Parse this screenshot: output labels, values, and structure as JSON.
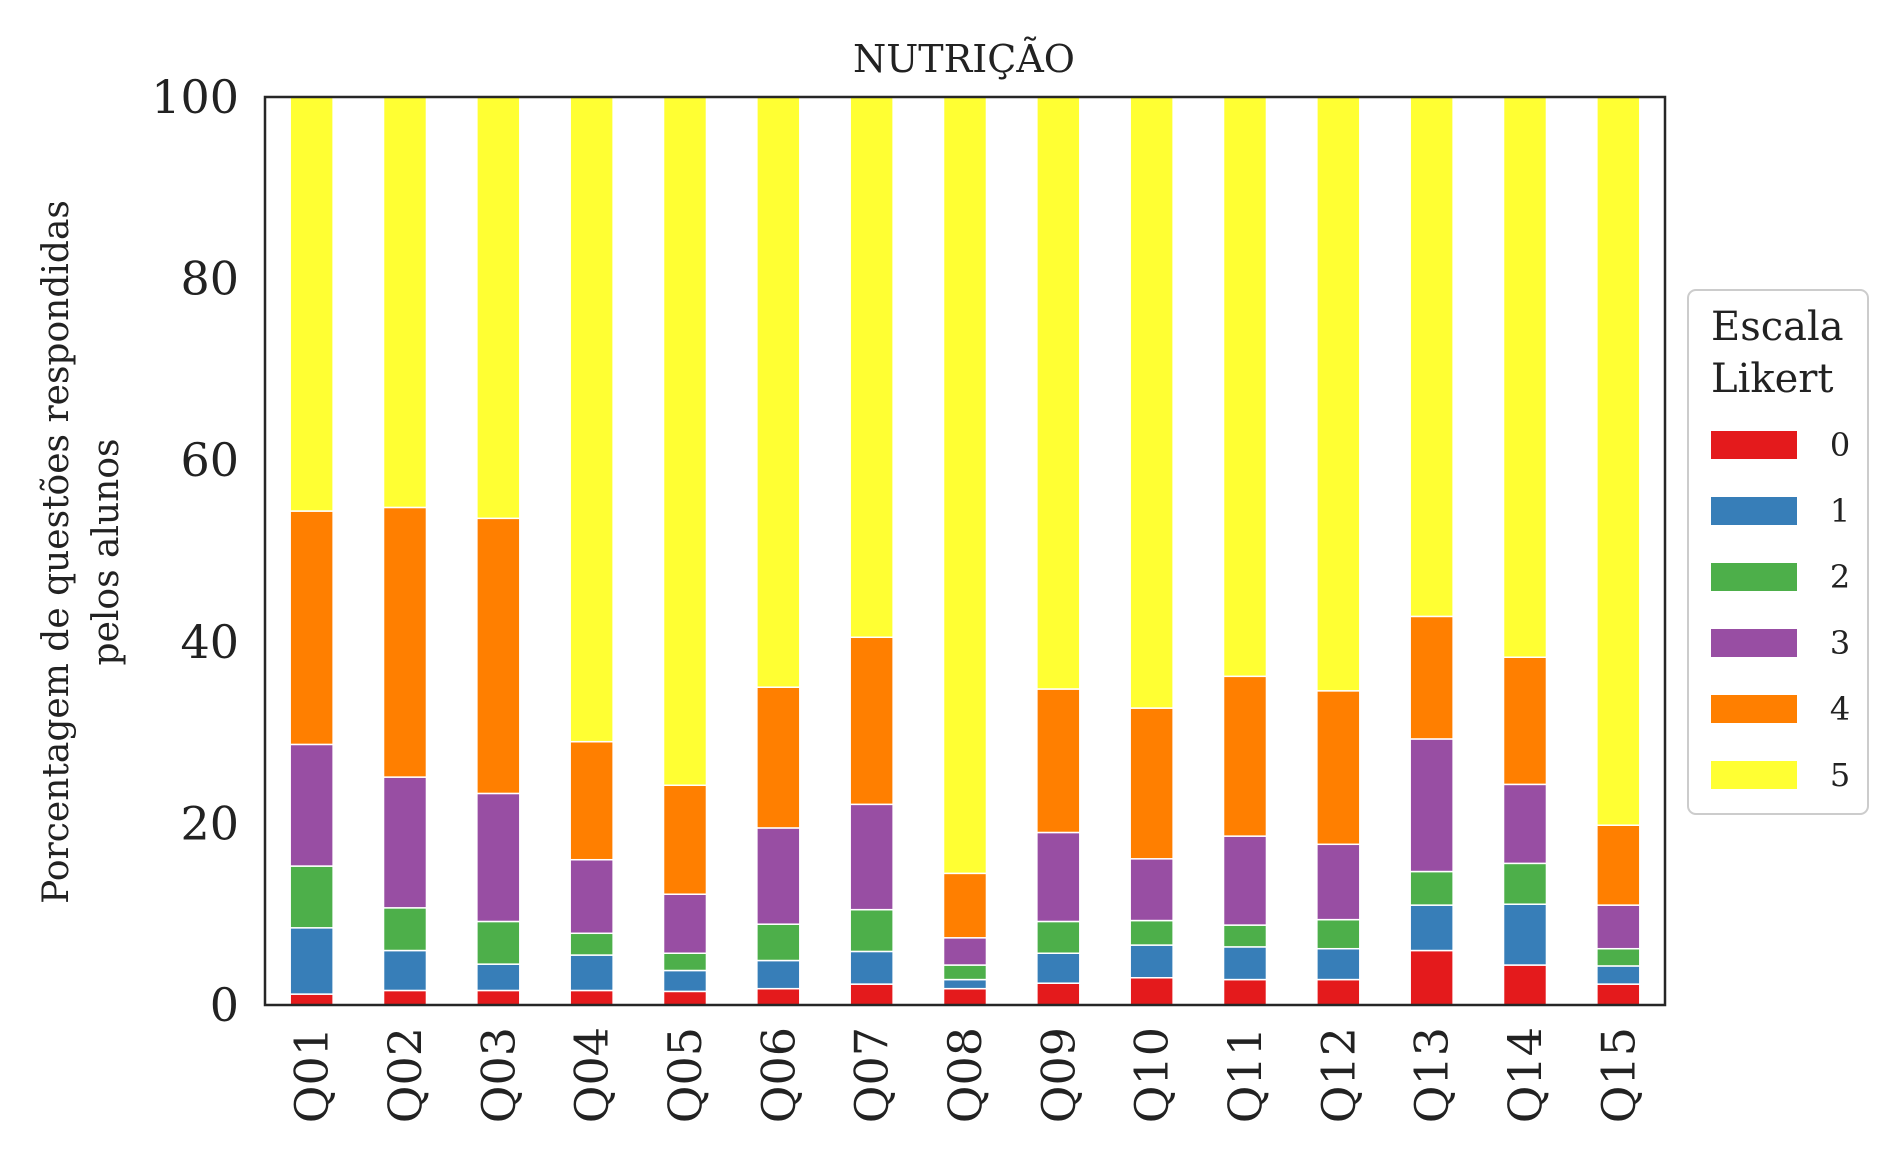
{
  "chart_data": {
    "type": "bar",
    "stacked": true,
    "title": "NUTRIÇÃO",
    "xlabel": "",
    "ylabel_lines": [
      "Porcentagem de questões respondidas",
      "pelos alunos"
    ],
    "ylim": [
      0,
      100
    ],
    "yticks": [
      0,
      20,
      40,
      60,
      80,
      100
    ],
    "grid": false,
    "categories": [
      "Q01",
      "Q02",
      "Q03",
      "Q04",
      "Q05",
      "Q06",
      "Q07",
      "Q08",
      "Q09",
      "Q10",
      "Q11",
      "Q12",
      "Q13",
      "Q14",
      "Q15"
    ],
    "legend": {
      "title_lines": [
        "Escala",
        "Likert"
      ],
      "placement": "right"
    },
    "series": [
      {
        "name": "0",
        "color": "#e41a1c",
        "values": [
          1.2,
          1.6,
          1.6,
          1.6,
          1.5,
          1.8,
          2.3,
          1.8,
          2.4,
          3.0,
          2.8,
          2.8,
          6.0,
          4.4,
          2.3
        ]
      },
      {
        "name": "1",
        "color": "#377eb8",
        "values": [
          7.3,
          4.4,
          2.9,
          3.9,
          2.3,
          3.1,
          3.6,
          1.0,
          3.3,
          3.6,
          3.6,
          3.4,
          5.0,
          6.7,
          2.0
        ]
      },
      {
        "name": "2",
        "color": "#4daf4a",
        "values": [
          6.8,
          4.7,
          4.7,
          2.4,
          1.9,
          4.0,
          4.6,
          1.6,
          3.5,
          2.7,
          2.4,
          3.2,
          3.7,
          4.5,
          1.9
        ]
      },
      {
        "name": "3",
        "color": "#984ea3",
        "values": [
          13.4,
          14.4,
          14.1,
          8.1,
          6.5,
          10.6,
          11.6,
          3.0,
          9.8,
          6.8,
          9.8,
          8.3,
          14.6,
          8.7,
          4.8
        ]
      },
      {
        "name": "4",
        "color": "#ff7f00",
        "values": [
          25.7,
          29.7,
          30.3,
          13.0,
          12.0,
          15.5,
          18.4,
          7.1,
          15.8,
          16.6,
          17.6,
          16.9,
          13.5,
          14.0,
          8.8
        ]
      },
      {
        "name": "5",
        "color": "#ffff33",
        "values": [
          45.6,
          45.2,
          46.4,
          71.0,
          75.8,
          65.0,
          59.5,
          85.5,
          65.2,
          67.3,
          63.8,
          65.4,
          57.2,
          61.7,
          80.2
        ]
      }
    ]
  }
}
